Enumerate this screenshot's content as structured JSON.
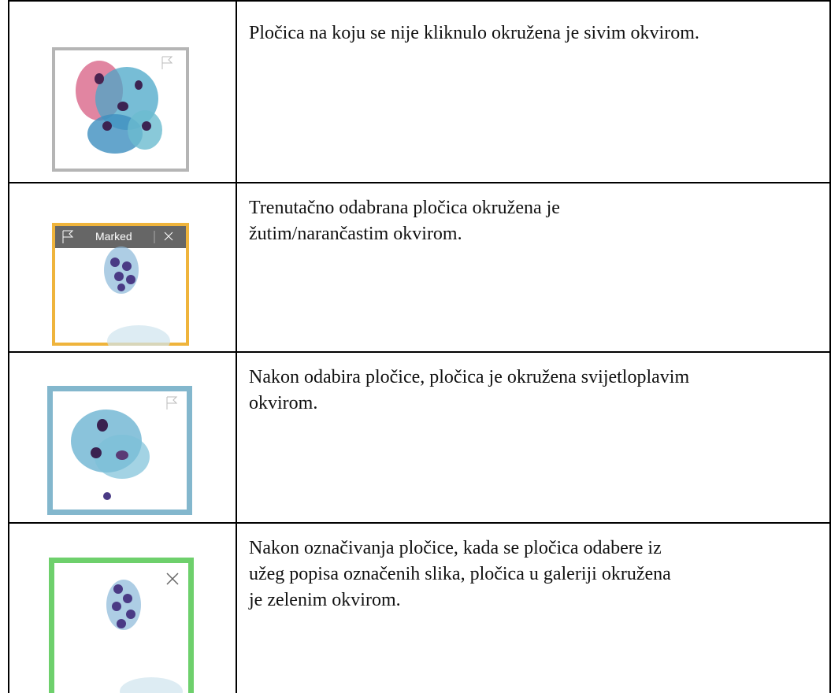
{
  "table": {
    "rows": [
      {
        "lines": [
          "Pločica na koju se nije kliknulo okružena je sivim okvirom."
        ]
      },
      {
        "lines": [
          "Trenutačno odabrana pločica okružena je",
          "žutim/narančastim okvirom."
        ],
        "tile_label": "Marked"
      },
      {
        "lines": [
          "Nakon odabira pločice, pločica je okružena svijetloplavim",
          "okvirom."
        ]
      },
      {
        "lines": [
          "Nakon označivanja pločice, kada se pločica odabere iz",
          "užeg popisa označenih slika, pločica u galeriji okružena",
          "je zelenim okvirom."
        ]
      }
    ]
  }
}
